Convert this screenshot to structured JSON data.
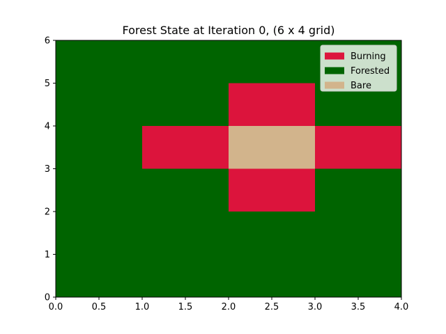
{
  "chart_data": {
    "type": "heatmap",
    "title": "Forest State at Iteration 0, (6 x 4 grid)",
    "xlabel": "",
    "ylabel": "",
    "xlim": [
      0,
      4
    ],
    "ylim": [
      0,
      6
    ],
    "xticks": [
      "0.0",
      "0.5",
      "1.0",
      "1.5",
      "2.0",
      "2.5",
      "3.0",
      "3.5",
      "4.0"
    ],
    "yticks": [
      "0",
      "1",
      "2",
      "3",
      "4",
      "5",
      "6"
    ],
    "grid": false,
    "legend_position": "top-right",
    "states": [
      {
        "name": "Burning",
        "color": "#dc143c"
      },
      {
        "name": "Forested",
        "color": "#006400"
      },
      {
        "name": "Bare",
        "color": "#d2b48c"
      }
    ],
    "cells_row_order": "top-to-bottom",
    "cells": [
      [
        "Forested",
        "Forested",
        "Forested",
        "Forested"
      ],
      [
        "Forested",
        "Forested",
        "Burning",
        "Forested"
      ],
      [
        "Forested",
        "Burning",
        "Bare",
        "Burning"
      ],
      [
        "Forested",
        "Forested",
        "Burning",
        "Forested"
      ],
      [
        "Forested",
        "Forested",
        "Forested",
        "Forested"
      ],
      [
        "Forested",
        "Forested",
        "Forested",
        "Forested"
      ]
    ]
  }
}
